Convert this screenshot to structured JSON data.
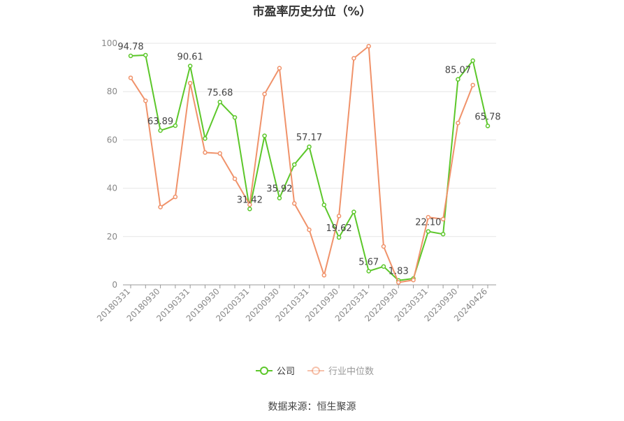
{
  "chart_data": {
    "type": "line",
    "title": "市盈率历史分位（%）",
    "source": "数据来源：恒生聚源",
    "xlabel": "",
    "ylabel": "",
    "ylim": [
      0,
      100
    ],
    "yticks": [
      0,
      20,
      40,
      60,
      80,
      100
    ],
    "x": [
      "20180331",
      "20180630",
      "20180930",
      "20181231",
      "20190331",
      "20190630",
      "20190930",
      "20191231",
      "20200331",
      "20200630",
      "20200930",
      "20201231",
      "20210331",
      "20210630",
      "20210930",
      "20211231",
      "20220331",
      "20220630",
      "20220930",
      "20221231",
      "20230331",
      "20230630",
      "20230930",
      "20231231",
      "20240426"
    ],
    "x_tick_labels": [
      "20180331",
      "20180930",
      "20190331",
      "20190930",
      "20200331",
      "20200930",
      "20210331",
      "20210930",
      "20220331",
      "20220930",
      "20230331",
      "20230930",
      "20240426"
    ],
    "x_tick_indices": [
      0,
      2,
      4,
      6,
      8,
      10,
      12,
      14,
      16,
      18,
      20,
      22,
      24
    ],
    "grid": true,
    "legend_position": "bottom",
    "series": [
      {
        "name": "公司",
        "color": "#5cc72a",
        "values": [
          94.78,
          95.1,
          63.89,
          65.9,
          90.61,
          60.6,
          75.68,
          69.3,
          31.42,
          61.7,
          35.92,
          49.8,
          57.17,
          33.1,
          19.62,
          30.2,
          5.67,
          7.6,
          1.83,
          2.6,
          22.1,
          21.0,
          85.07,
          92.8,
          65.78
        ],
        "labels": {
          "0": "94.78",
          "2": "63.89",
          "4": "90.61",
          "6": "75.68",
          "8": "31.42",
          "10": "35.92",
          "12": "57.17",
          "14": "19.62",
          "16": "5.67",
          "18": "1.83",
          "20": "22.10",
          "22": "85.07",
          "24": "65.78"
        }
      },
      {
        "name": "行业中位数",
        "color": "#f0926a",
        "values": [
          85.7,
          76.2,
          32.2,
          36.4,
          83.5,
          54.8,
          54.4,
          43.9,
          33.2,
          79.0,
          89.7,
          33.7,
          22.8,
          4.0,
          28.5,
          93.8,
          98.8,
          15.9,
          1.0,
          2.0,
          28.0,
          27.2,
          67.0,
          82.7,
          null
        ]
      }
    ]
  }
}
